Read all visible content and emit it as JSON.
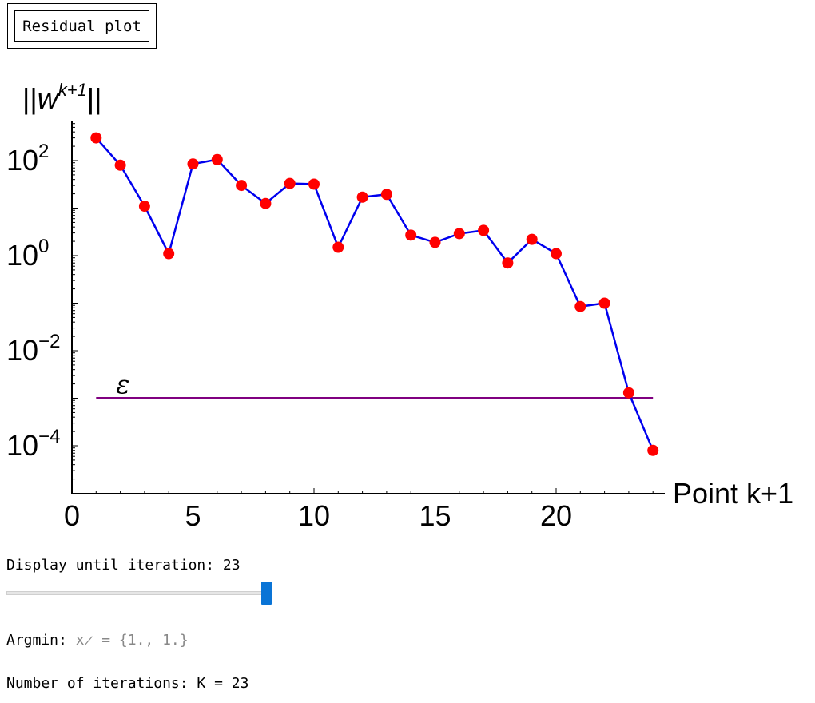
{
  "button": {
    "label": "Residual plot"
  },
  "chart_data": {
    "type": "line",
    "title": "",
    "ylabel": {
      "base": "||w",
      "sup": "k+1",
      "tail": "||"
    },
    "xlabel": "Point k+1",
    "yscale": "log",
    "xlim": [
      0,
      24.5
    ],
    "ylim_log10": [
      -5,
      2.8
    ],
    "xticks": [
      0,
      5,
      10,
      15,
      20
    ],
    "yticks": [
      {
        "base": "10",
        "exp": "2",
        "log": 2
      },
      {
        "base": "10",
        "exp": "0",
        "log": 0
      },
      {
        "base": "10",
        "exp": "−2",
        "log": -2
      },
      {
        "base": "10",
        "exp": "−4",
        "log": -4
      }
    ],
    "series": [
      {
        "name": "residual",
        "line_color": "#0000ee",
        "marker_color": "#ff0000",
        "x": [
          1,
          2,
          3,
          4,
          5,
          6,
          7,
          8,
          9,
          10,
          11,
          12,
          13,
          14,
          15,
          16,
          17,
          18,
          19,
          20,
          21,
          22,
          23,
          24
        ],
        "y": [
          300,
          80,
          11,
          1.1,
          85,
          105,
          30,
          12.5,
          33,
          32,
          1.5,
          17,
          19.5,
          2.7,
          1.9,
          2.9,
          3.4,
          0.7,
          2.2,
          1.1,
          0.085,
          0.1,
          0.0013,
          8e-05
        ]
      }
    ],
    "threshold": {
      "label": "ε",
      "value": 0.001,
      "x_start": 1,
      "x_end": 24,
      "color": "#800080"
    }
  },
  "controls": {
    "display_label": "Display until iteration: 23",
    "argmin_prefix": "Argmin: ",
    "argmin_symbol": "x̷",
    "argmin_equals": " = ",
    "argmin_value": "{1., 1.}",
    "iterations_label": "Number of iterations: K = 23"
  },
  "slider": {
    "value": 23,
    "min": 1,
    "max": 24
  }
}
